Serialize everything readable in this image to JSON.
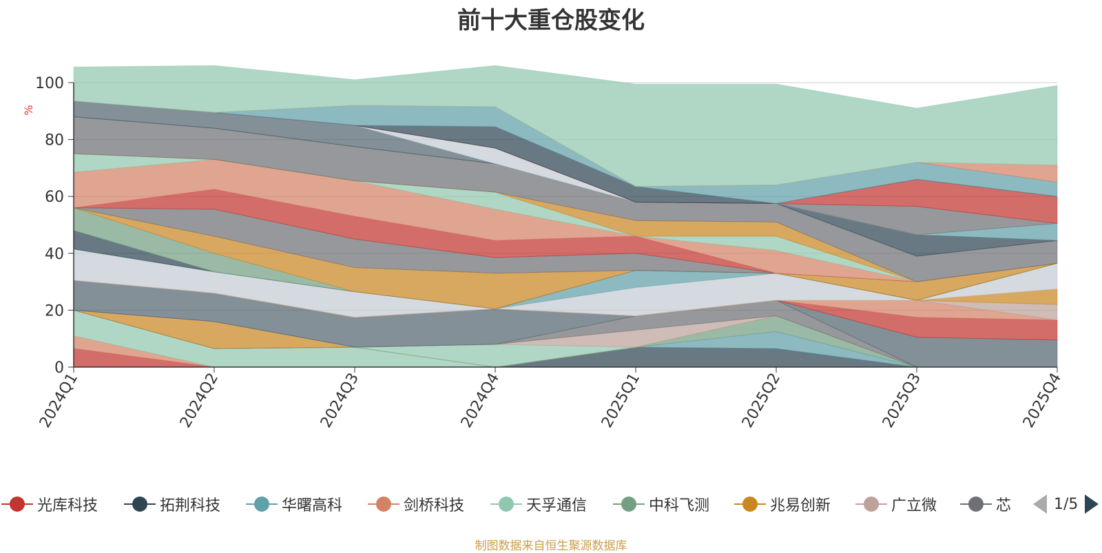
{
  "chart_data": {
    "type": "area",
    "stacked": true,
    "title": "前十大重仓股变化",
    "ylabel": "%",
    "xlabel": "",
    "ylim": [
      0,
      100
    ],
    "yticks": [
      0,
      20,
      40,
      60,
      80,
      100
    ],
    "grid": true,
    "categories": [
      "2024Q1",
      "2024Q2",
      "2024Q3",
      "2024Q4",
      "2025Q1",
      "2025Q2",
      "2025Q3",
      "2025Q4"
    ],
    "series": [
      {
        "name": "光库科技",
        "color": "#c23531",
        "values": [
          6.5,
          0,
          0,
          0,
          0,
          0,
          0,
          0
        ]
      },
      {
        "name": "",
        "color": "#d48265",
        "values": [
          4.5,
          0,
          0,
          0,
          0,
          0,
          0,
          0
        ]
      },
      {
        "name": "",
        "color": "#91c7ae",
        "values": [
          9,
          6.5,
          7,
          0,
          0,
          0,
          0,
          0
        ]
      },
      {
        "name": "",
        "color": "#2f4554",
        "values": [
          0,
          0,
          0,
          0,
          7,
          6.5,
          0,
          0
        ]
      },
      {
        "name": "",
        "color": "#61a0a8",
        "values": [
          0,
          0,
          0,
          0,
          0,
          6,
          0,
          0
        ]
      },
      {
        "name": "",
        "color": "#749f83",
        "values": [
          0,
          0,
          0,
          0,
          0,
          5.5,
          0,
          0
        ]
      },
      {
        "name": "",
        "color": "#ca8622",
        "values": [
          0,
          9.5,
          0,
          0,
          0,
          0,
          0,
          0
        ]
      },
      {
        "name": "",
        "color": "#91c7ae",
        "values": [
          0,
          0,
          0,
          8,
          0,
          0,
          0,
          0
        ]
      },
      {
        "name": "",
        "color": "#bda29a",
        "values": [
          0,
          0,
          0,
          0,
          6,
          0,
          0,
          0
        ]
      },
      {
        "name": "",
        "color": "#6e7074",
        "values": [
          0,
          0,
          0,
          0,
          5,
          5.5,
          0,
          0
        ]
      },
      {
        "name": "",
        "color": "#546570",
        "values": [
          10.5,
          10,
          10.5,
          12.5,
          0,
          0,
          10.5,
          9.5
        ]
      },
      {
        "name": "",
        "color": "#c23531",
        "values": [
          0,
          0,
          0,
          0,
          0,
          0,
          7,
          7
        ]
      },
      {
        "name": "",
        "color": "#d48265",
        "values": [
          0,
          0,
          0,
          0,
          0,
          0,
          6,
          0
        ]
      },
      {
        "name": "",
        "color": "#bda29a",
        "values": [
          0,
          0,
          0,
          0,
          0,
          0,
          0,
          5.5
        ]
      },
      {
        "name": "",
        "color": "#ca8622",
        "values": [
          0,
          0,
          0,
          0,
          0,
          0,
          0,
          5.5
        ]
      },
      {
        "name": "",
        "color": "#c4ccd3",
        "values": [
          11,
          7.5,
          9,
          0,
          10,
          9.5,
          0,
          9
        ]
      },
      {
        "name": "",
        "color": "#61a0a8",
        "values": [
          0,
          0,
          0,
          0,
          6,
          0,
          0,
          0
        ]
      },
      {
        "name": "",
        "color": "#2f4554",
        "values": [
          6.5,
          0,
          0,
          0,
          0,
          0,
          0,
          0
        ]
      },
      {
        "name": "",
        "color": "#749f83",
        "values": [
          8,
          6.5,
          0,
          0,
          0,
          0,
          0,
          0
        ]
      },
      {
        "name": "",
        "color": "#ca8622",
        "values": [
          0,
          6,
          8.5,
          12.5,
          0,
          0,
          6.5,
          0
        ]
      },
      {
        "name": "",
        "color": "#6e7074",
        "values": [
          0,
          9.5,
          10,
          5.5,
          6,
          0,
          0,
          0
        ]
      },
      {
        "name": "",
        "color": "#c23531",
        "values": [
          0,
          7,
          8,
          6,
          6,
          0,
          0,
          0
        ]
      },
      {
        "name": "",
        "color": "#d48265",
        "values": [
          12.5,
          10.5,
          12.5,
          11,
          0,
          8,
          0,
          0
        ]
      },
      {
        "name": "",
        "color": "#91c7ae",
        "values": [
          6.5,
          0,
          0,
          6,
          0,
          5,
          0,
          0
        ]
      },
      {
        "name": "",
        "color": "#ca8622",
        "values": [
          0,
          0,
          0,
          0,
          5.5,
          5,
          0,
          0
        ]
      },
      {
        "name": "",
        "color": "#6e7074",
        "values": [
          13,
          11,
          12,
          10,
          6.5,
          6.5,
          9,
          8
        ]
      },
      {
        "name": "",
        "color": "#2f4554",
        "values": [
          0,
          0,
          0,
          0,
          0,
          0,
          7.5,
          0
        ]
      },
      {
        "name": "",
        "color": "#546570",
        "values": [
          5.5,
          5.5,
          7.5,
          0,
          0,
          0,
          0,
          0
        ]
      },
      {
        "name": "",
        "color": "#61a0a8",
        "values": [
          0,
          0,
          0,
          0,
          0,
          0,
          0,
          6
        ]
      },
      {
        "name": "",
        "color": "#c4ccd3",
        "values": [
          0,
          0,
          0,
          5.5,
          0,
          0,
          0,
          0
        ]
      },
      {
        "name": "",
        "color": "#6e7074",
        "values": [
          0,
          0,
          0,
          0,
          0,
          0,
          10,
          0
        ]
      },
      {
        "name": "",
        "color": "#c23531",
        "values": [
          0,
          0,
          0,
          0,
          0,
          0,
          9.5,
          9.5
        ]
      },
      {
        "name": "",
        "color": "#2f4554",
        "values": [
          0,
          0,
          0,
          7.5,
          5.5,
          0,
          0,
          0
        ]
      },
      {
        "name": "",
        "color": "#61a0a8",
        "values": [
          0,
          0,
          7,
          7,
          0,
          6.5,
          6,
          5
        ]
      },
      {
        "name": "",
        "color": "#d48265",
        "values": [
          0,
          0,
          0,
          0,
          0,
          0,
          0,
          6
        ]
      },
      {
        "name": "",
        "color": "#91c7ae",
        "values": [
          12,
          16.5,
          9,
          14.5,
          36,
          35.5,
          19,
          28
        ]
      }
    ]
  },
  "legend": {
    "items": [
      {
        "name": "光库科技",
        "color": "#c23531"
      },
      {
        "name": "拓荆科技",
        "color": "#2f4554"
      },
      {
        "name": "华曙高科",
        "color": "#61a0a8"
      },
      {
        "name": "剑桥科技",
        "color": "#d48265"
      },
      {
        "name": "天孚通信",
        "color": "#91c7ae"
      },
      {
        "name": "中科飞测",
        "color": "#749f83"
      },
      {
        "name": "兆易创新",
        "color": "#ca8622"
      },
      {
        "name": "广立微",
        "color": "#bda29a"
      },
      {
        "name": "芯",
        "color": "#6e7074"
      }
    ],
    "page": "1/5"
  },
  "source_note": "制图数据来自恒生聚源数据库"
}
